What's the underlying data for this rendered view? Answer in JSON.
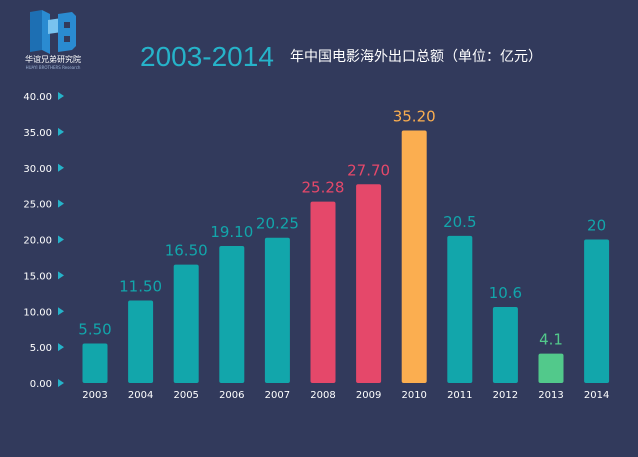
{
  "brand": {
    "logo_text": "华谊兄弟研究院",
    "logo_subtext": "HUAYI BROTHERS Research",
    "colors": {
      "dark": "#1d6fb3",
      "mid": "#2a8bd1",
      "light": "#79c3ef"
    }
  },
  "header": {
    "title_years": "2003-2014",
    "title_text": "年中国电影海外出口总额（单位：亿元）"
  },
  "chart_data": {
    "type": "bar",
    "categories": [
      "2003",
      "2004",
      "2005",
      "2006",
      "2007",
      "2008",
      "2009",
      "2010",
      "2011",
      "2012",
      "2013",
      "2014"
    ],
    "values": [
      5.5,
      11.5,
      16.5,
      19.1,
      20.25,
      25.28,
      27.7,
      35.2,
      20.5,
      10.6,
      4.1,
      20
    ],
    "value_labels": [
      "5.50",
      "11.50",
      "16.50",
      "19.10",
      "20.25",
      "25.28",
      "27.70",
      "35.20",
      "20.5",
      "10.6",
      "4.1",
      "20"
    ],
    "colors": [
      "#12a6ab",
      "#12a6ab",
      "#12a6ab",
      "#12a6ab",
      "#12a6ab",
      "#e5486a",
      "#e5486a",
      "#fbae50",
      "#12a6ab",
      "#12a6ab",
      "#52c98b",
      "#12a6ab"
    ],
    "ylim": [
      0,
      40
    ],
    "y_ticks": [
      "0.00",
      "5.00",
      "10.00",
      "15.00",
      "20.00",
      "25.00",
      "30.00",
      "35.00",
      "40.00"
    ],
    "title": "2003-2014 年中国电影海外出口总额（单位：亿元）",
    "xlabel": "",
    "ylabel": "",
    "grid": false,
    "axis_color": "#26b3c9",
    "tick_color": "#ffffff",
    "title_color": "#26b3c9"
  }
}
